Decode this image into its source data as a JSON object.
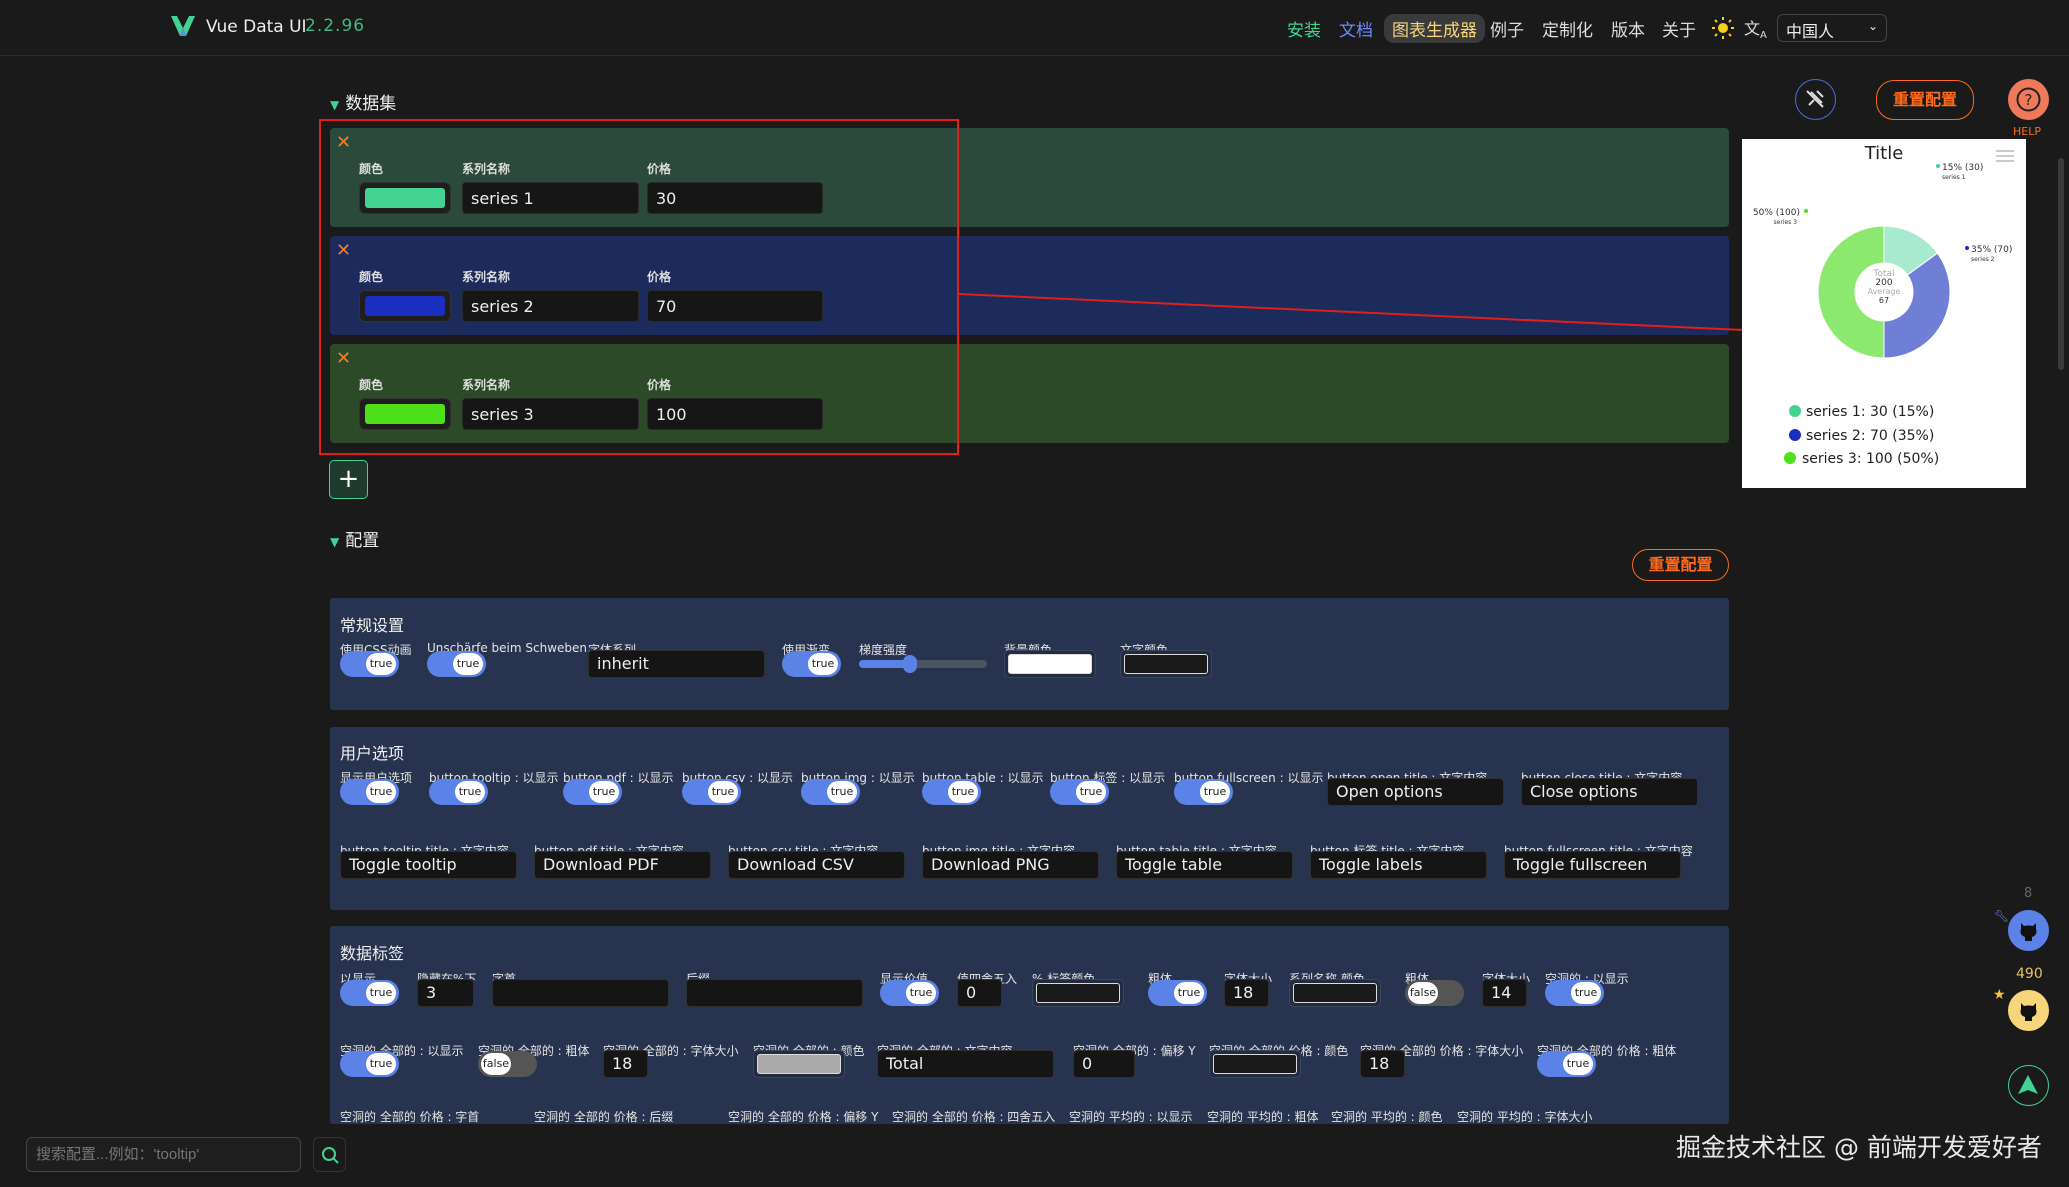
{
  "header": {
    "brand": "Vue Data UI",
    "version": "2.2.96",
    "nav": [
      {
        "label": "安装",
        "color": "#42d392"
      },
      {
        "label": "文档",
        "color": "#6a8bff"
      },
      {
        "label": "图表生成器",
        "active": true
      },
      {
        "label": "例子"
      },
      {
        "label": "定制化"
      },
      {
        "label": "版本"
      },
      {
        "label": "关于"
      }
    ],
    "theme_icon": "sun-icon",
    "translate_icon": "translate-icon",
    "language": "中国人"
  },
  "dataset": {
    "title": "数据集",
    "col_color": "颜色",
    "col_name": "系列名称",
    "col_value": "价格",
    "rows": [
      {
        "color": "#42d392",
        "name": "series 1",
        "value": "30",
        "bg": "#2b4a3b"
      },
      {
        "color": "#1a2fc0",
        "name": "series 2",
        "value": "70",
        "bg": "#1c2a5c"
      },
      {
        "color": "#4ee01a",
        "name": "series 3",
        "value": "100",
        "bg": "#2c4a27"
      }
    ],
    "add_label": "+"
  },
  "config": {
    "title": "配置",
    "reset_label": "重置配置",
    "sections": [
      {
        "title": "常规设置",
        "rows": [
          [
            {
              "label": "使用CSS动画",
              "type": "toggle",
              "value": "true"
            },
            {
              "label": "Unschärfe beim Schweben",
              "type": "toggle",
              "value": "true"
            },
            {
              "label": "字体系列",
              "type": "input",
              "value": "inherit"
            },
            {
              "label": "使用渐变",
              "type": "toggle",
              "value": "true"
            },
            {
              "label": "梯度强度",
              "type": "slider",
              "value": 40
            },
            {
              "label": "背景颜色",
              "type": "color",
              "value": "#ffffff"
            },
            {
              "label": "文字颜色",
              "type": "color",
              "value": "#1a1a1a"
            }
          ]
        ]
      },
      {
        "title": "用户选项",
        "rows": [
          [
            {
              "label": "显示用户选项",
              "type": "toggle",
              "value": "true"
            },
            {
              "label": "button tooltip : 以显示",
              "type": "toggle",
              "value": "true"
            },
            {
              "label": "button pdf : 以显示",
              "type": "toggle",
              "value": "true"
            },
            {
              "label": "button csv : 以显示",
              "type": "toggle",
              "value": "true"
            },
            {
              "label": "button img : 以显示",
              "type": "toggle",
              "value": "true"
            },
            {
              "label": "button table : 以显示",
              "type": "toggle",
              "value": "true"
            },
            {
              "label": "button 标签 : 以显示",
              "type": "toggle",
              "value": "true"
            },
            {
              "label": "button fullscreen : 以显示",
              "type": "toggle",
              "value": "true"
            },
            {
              "label": "button open title : 文字内容",
              "type": "input",
              "value": "Open options"
            },
            {
              "label": "button close title : 文字内容",
              "type": "input",
              "value": "Close options"
            }
          ],
          [
            {
              "label": "button tooltip title : 文字内容",
              "type": "input",
              "value": "Toggle tooltip"
            },
            {
              "label": "button pdf title : 文字内容",
              "type": "input",
              "value": "Download PDF"
            },
            {
              "label": "button csv title : 文字内容",
              "type": "input",
              "value": "Download CSV"
            },
            {
              "label": "button img title : 文字内容",
              "type": "input",
              "value": "Download PNG"
            },
            {
              "label": "button table title : 文字内容",
              "type": "input",
              "value": "Toggle table"
            },
            {
              "label": "button 标签 title : 文字内容",
              "type": "input",
              "value": "Toggle labels"
            },
            {
              "label": "button fullscreen title : 文字内容",
              "type": "input",
              "value": "Toggle fullscreen"
            }
          ]
        ]
      },
      {
        "title": "数据标签",
        "rows": [
          [
            {
              "label": "以显示",
              "type": "toggle",
              "value": "true"
            },
            {
              "label": "隐藏在%下",
              "type": "input",
              "value": "3"
            },
            {
              "label": "字首",
              "type": "input",
              "value": ""
            },
            {
              "label": "后缀",
              "type": "input",
              "value": ""
            },
            {
              "label": "显示价值",
              "type": "toggle",
              "value": "true"
            },
            {
              "label": "值四舍五入",
              "type": "input",
              "value": "0"
            },
            {
              "label": "% 标签颜色",
              "type": "color",
              "value": "#1a1a1a"
            },
            {
              "label": "粗体",
              "type": "toggle",
              "value": "true"
            },
            {
              "label": "字体大小",
              "type": "input",
              "value": "18"
            },
            {
              "label": "系列名称 颜色",
              "type": "color",
              "value": "#1a1a1a"
            },
            {
              "label": "粗体",
              "type": "toggle",
              "value": "false"
            },
            {
              "label": "字体大小",
              "type": "input",
              "value": "14"
            },
            {
              "label": "空洞的 : 以显示",
              "type": "toggle",
              "value": "true"
            }
          ],
          [
            {
              "label": "空洞的 全部的 : 以显示",
              "type": "toggle",
              "value": "true"
            },
            {
              "label": "空洞的 全部的 : 粗体",
              "type": "toggle",
              "value": "false"
            },
            {
              "label": "空洞的 全部的 : 字体大小",
              "type": "input",
              "value": "18"
            },
            {
              "label": "空洞的 全部的 : 颜色",
              "type": "color",
              "value": "#aaaaaa"
            },
            {
              "label": "空洞的 全部的 : 文字内容",
              "type": "input",
              "value": "Total"
            },
            {
              "label": "空洞的 全部的 : 偏移 Y",
              "type": "input",
              "value": "0"
            },
            {
              "label": "空洞的 全部的 价格 : 颜色",
              "type": "color",
              "value": "#1a1a1a"
            },
            {
              "label": "空洞的 全部的 价格 : 字体大小",
              "type": "input",
              "value": "18"
            },
            {
              "label": "空洞的 全部的 价格 : 粗体",
              "type": "toggle",
              "value": "true"
            }
          ],
          [
            {
              "label": "空洞的 全部的 价格 : 字首",
              "type": "label"
            },
            {
              "label": "空洞的 全部的 价格 : 后缀",
              "type": "label"
            },
            {
              "label": "空洞的 全部的 价格 : 偏移 Y",
              "type": "label"
            },
            {
              "label": "空洞的 全部的 价格 : 四舍五入",
              "type": "label"
            },
            {
              "label": "空洞的 平均的 : 以显示",
              "type": "label"
            },
            {
              "label": "空洞的 平均的 : 粗体",
              "type": "label"
            },
            {
              "label": "空洞的 平均的 : 颜色",
              "type": "label"
            },
            {
              "label": "空洞的 平均的 : 字体大小",
              "type": "label"
            }
          ]
        ]
      }
    ]
  },
  "preview": {
    "reset_label": "重置配置",
    "help_label": "HELP",
    "pin_icon": "unpin-icon"
  },
  "chart_data": {
    "type": "pie",
    "title": "Title",
    "categories": [
      "series 1",
      "series 2",
      "series 3"
    ],
    "values": [
      30,
      70,
      100
    ],
    "percentages": [
      "15%",
      "35%",
      "50%"
    ],
    "colors": [
      "#42d392",
      "#1a2fc0",
      "#4ee01a"
    ],
    "slice_labels": [
      "15% (30)",
      "35% (70)",
      "50% (100)"
    ],
    "hollow": {
      "total_label": "Total",
      "total": "200",
      "average_label": "Average",
      "average": "67"
    },
    "legend": [
      "series 1: 30 (15%)",
      "series 2: 70 (35%)",
      "series 3: 100 (50%)"
    ],
    "legend_placement": "bottom"
  },
  "side": {
    "issues_count": "8",
    "stars_count": "490"
  },
  "bottom": {
    "search_placeholder": "搜索配置...例如：'tooltip'",
    "watermark": "掘金技术社区 @ 前端开发爱好者"
  }
}
